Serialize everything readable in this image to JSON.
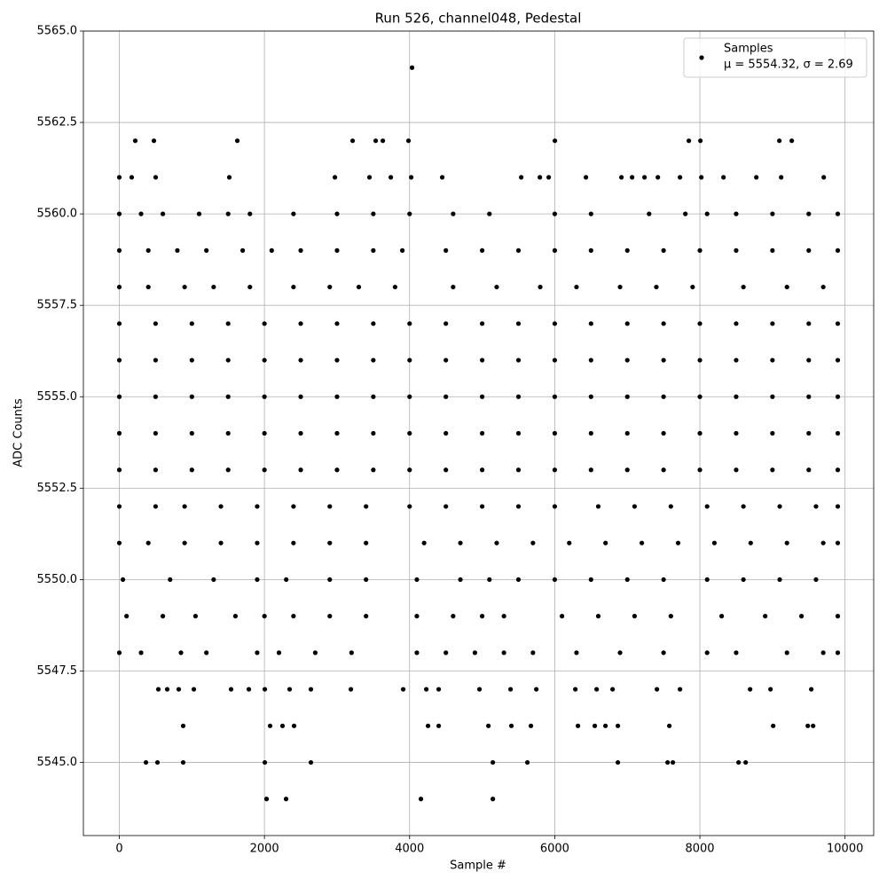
{
  "chart_data": {
    "type": "scatter",
    "title": "Run 526, channel048, Pedestal",
    "x_label": "Sample #",
    "y_label": "ADC Counts",
    "legend_loc": "upper right",
    "annotation": "μ = 5554.32, σ = 2.69",
    "grid": true,
    "xlim": [
      -495,
      10395
    ],
    "ylim": [
      5543,
      5565
    ],
    "xticks": [
      0,
      2000,
      4000,
      6000,
      8000,
      10000
    ],
    "yticks": [
      {
        "value": 5545,
        "label": "5545.0"
      },
      5547.5,
      {
        "value": 5550,
        "label": "5550.0"
      },
      5552.5,
      {
        "value": 5555,
        "label": "5555.0"
      },
      5557.5,
      {
        "value": 5560,
        "label": "5560.0"
      },
      5562.5,
      {
        "value": 5565,
        "label": "5565.0"
      }
    ],
    "series": [
      {
        "name": "Samples",
        "color": "#000000",
        "x": [
          4034,
          2029,
          2298,
          4156,
          5147,
          367,
          526,
          880,
          2005,
          2640,
          5147,
          5623,
          6870,
          7555,
          7628,
          8533,
          8631,
          880,
          2078,
          2249,
          2408,
          4254,
          4401,
          5086,
          5403,
          5672,
          6320,
          6552,
          6699,
          6870,
          7579,
          9010,
          9487,
          9560,
          538,
          660,
          819,
          1027,
          1540,
          1785,
          2005,
          2347,
          2640,
          3191,
          3912,
          4230,
          4401,
          4963,
          5391,
          5746,
          6284,
          6577,
          6797,
          7408,
          7726,
          8692,
          8973,
          9535,
          220,
          477,
          1626,
          3215,
          3533,
          3631,
          3985,
          6002,
          7848,
          8007,
          9095,
          9266,
          0,
          171,
          501,
          1516,
          2971,
          3447,
          3741,
          4022,
          4450,
          5538,
          5795,
          5917,
          6430,
          6919,
          7066,
          7237,
          7421,
          7726,
          8020,
          8325,
          8778,
          9120,
          9707,
          0,
          300,
          600,
          1100,
          1500,
          1800,
          2400,
          3000,
          3500,
          4000,
          4600,
          5100,
          6000,
          6500,
          7300,
          7800,
          8100,
          8500,
          9000,
          9500,
          9900,
          0,
          400,
          800,
          1200,
          1700,
          2100,
          2500,
          3000,
          3500,
          3900,
          4500,
          5000,
          5500,
          6000,
          6500,
          7000,
          7500,
          8000,
          8500,
          9000,
          9500,
          9900,
          0,
          400,
          900,
          1300,
          1800,
          2400,
          2900,
          3300,
          3800,
          4600,
          5200,
          5800,
          6300,
          6900,
          7400,
          7900,
          8600,
          9200,
          9700,
          0,
          500,
          1000,
          1500,
          2000,
          2500,
          3000,
          3500,
          4000,
          4500,
          5000,
          5500,
          6000,
          6500,
          7000,
          7500,
          8000,
          8500,
          9000,
          9500,
          9900,
          0,
          500,
          1000,
          1500,
          2000,
          2500,
          3000,
          3500,
          4000,
          4500,
          5000,
          5500,
          6000,
          6500,
          7000,
          7500,
          8000,
          8500,
          9000,
          9500,
          9900,
          0,
          500,
          1000,
          1500,
          2000,
          2500,
          3000,
          3500,
          4000,
          4500,
          5000,
          5500,
          6000,
          6500,
          7000,
          7500,
          8000,
          8500,
          9000,
          9500,
          9900,
          0,
          500,
          1000,
          1500,
          2000,
          2500,
          3000,
          3500,
          4000,
          4500,
          5000,
          5500,
          6000,
          6500,
          7000,
          7500,
          8000,
          8500,
          9000,
          9500,
          9900,
          0,
          500,
          1000,
          1500,
          2000,
          2500,
          3000,
          3500,
          4000,
          4500,
          5000,
          5500,
          6000,
          6500,
          7000,
          7500,
          8000,
          8500,
          9000,
          9500,
          9900,
          0,
          500,
          900,
          1400,
          1900,
          2400,
          2900,
          3400,
          4000,
          4500,
          5000,
          5500,
          6000,
          6600,
          7100,
          7600,
          8100,
          8600,
          9100,
          9600,
          9900,
          0,
          400,
          900,
          1400,
          1900,
          2400,
          2900,
          3400,
          4200,
          4700,
          5200,
          5700,
          6200,
          6700,
          7200,
          7700,
          8200,
          8700,
          9200,
          9700,
          9900,
          50,
          700,
          1300,
          1900,
          2300,
          2900,
          3400,
          4100,
          4700,
          5100,
          5500,
          6000,
          6500,
          7000,
          7500,
          8100,
          8600,
          9100,
          9600,
          100,
          600,
          1050,
          1600,
          2000,
          2400,
          2900,
          3400,
          4100,
          4600,
          5000,
          5300,
          6100,
          6600,
          7100,
          7600,
          8300,
          8900,
          9400,
          9900,
          0,
          300,
          850,
          1200,
          1900,
          2200,
          2700,
          3200,
          4100,
          4500,
          4900,
          5300,
          5700,
          6300,
          6900,
          7500,
          8100,
          8500,
          9200,
          9700,
          9900
        ],
        "values": [
          5564,
          5544,
          5544,
          5544,
          5544,
          5545,
          5545,
          5545,
          5545,
          5545,
          5545,
          5545,
          5545,
          5545,
          5545,
          5545,
          5545,
          5546,
          5546,
          5546,
          5546,
          5546,
          5546,
          5546,
          5546,
          5546,
          5546,
          5546,
          5546,
          5546,
          5546,
          5546,
          5546,
          5546,
          5547,
          5547,
          5547,
          5547,
          5547,
          5547,
          5547,
          5547,
          5547,
          5547,
          5547,
          5547,
          5547,
          5547,
          5547,
          5547,
          5547,
          5547,
          5547,
          5547,
          5547,
          5547,
          5547,
          5547,
          5562,
          5562,
          5562,
          5562,
          5562,
          5562,
          5562,
          5562,
          5562,
          5562,
          5562,
          5562,
          5561,
          5561,
          5561,
          5561,
          5561,
          5561,
          5561,
          5561,
          5561,
          5561,
          5561,
          5561,
          5561,
          5561,
          5561,
          5561,
          5561,
          5561,
          5561,
          5561,
          5561,
          5561,
          5561,
          5560,
          5560,
          5560,
          5560,
          5560,
          5560,
          5560,
          5560,
          5560,
          5560,
          5560,
          5560,
          5560,
          5560,
          5560,
          5560,
          5560,
          5560,
          5560,
          5560,
          5560,
          5559,
          5559,
          5559,
          5559,
          5559,
          5559,
          5559,
          5559,
          5559,
          5559,
          5559,
          5559,
          5559,
          5559,
          5559,
          5559,
          5559,
          5559,
          5559,
          5559,
          5559,
          5559,
          5558,
          5558,
          5558,
          5558,
          5558,
          5558,
          5558,
          5558,
          5558,
          5558,
          5558,
          5558,
          5558,
          5558,
          5558,
          5558,
          5558,
          5558,
          5558,
          5557,
          5557,
          5557,
          5557,
          5557,
          5557,
          5557,
          5557,
          5557,
          5557,
          5557,
          5557,
          5557,
          5557,
          5557,
          5557,
          5557,
          5557,
          5557,
          5557,
          5557,
          5556,
          5556,
          5556,
          5556,
          5556,
          5556,
          5556,
          5556,
          5556,
          5556,
          5556,
          5556,
          5556,
          5556,
          5556,
          5556,
          5556,
          5556,
          5556,
          5556,
          5556,
          5555,
          5555,
          5555,
          5555,
          5555,
          5555,
          5555,
          5555,
          5555,
          5555,
          5555,
          5555,
          5555,
          5555,
          5555,
          5555,
          5555,
          5555,
          5555,
          5555,
          5555,
          5554,
          5554,
          5554,
          5554,
          5554,
          5554,
          5554,
          5554,
          5554,
          5554,
          5554,
          5554,
          5554,
          5554,
          5554,
          5554,
          5554,
          5554,
          5554,
          5554,
          5554,
          5553,
          5553,
          5553,
          5553,
          5553,
          5553,
          5553,
          5553,
          5553,
          5553,
          5553,
          5553,
          5553,
          5553,
          5553,
          5553,
          5553,
          5553,
          5553,
          5553,
          5553,
          5552,
          5552,
          5552,
          5552,
          5552,
          5552,
          5552,
          5552,
          5552,
          5552,
          5552,
          5552,
          5552,
          5552,
          5552,
          5552,
          5552,
          5552,
          5552,
          5552,
          5552,
          5551,
          5551,
          5551,
          5551,
          5551,
          5551,
          5551,
          5551,
          5551,
          5551,
          5551,
          5551,
          5551,
          5551,
          5551,
          5551,
          5551,
          5551,
          5551,
          5551,
          5551,
          5550,
          5550,
          5550,
          5550,
          5550,
          5550,
          5550,
          5550,
          5550,
          5550,
          5550,
          5550,
          5550,
          5550,
          5550,
          5550,
          5550,
          5550,
          5550,
          5549,
          5549,
          5549,
          5549,
          5549,
          5549,
          5549,
          5549,
          5549,
          5549,
          5549,
          5549,
          5549,
          5549,
          5549,
          5549,
          5549,
          5549,
          5549,
          5549,
          5548,
          5548,
          5548,
          5548,
          5548,
          5548,
          5548,
          5548,
          5548,
          5548,
          5548,
          5548,
          5548,
          5548,
          5548,
          5548,
          5548,
          5548,
          5548,
          5548,
          5548
        ]
      }
    ]
  }
}
